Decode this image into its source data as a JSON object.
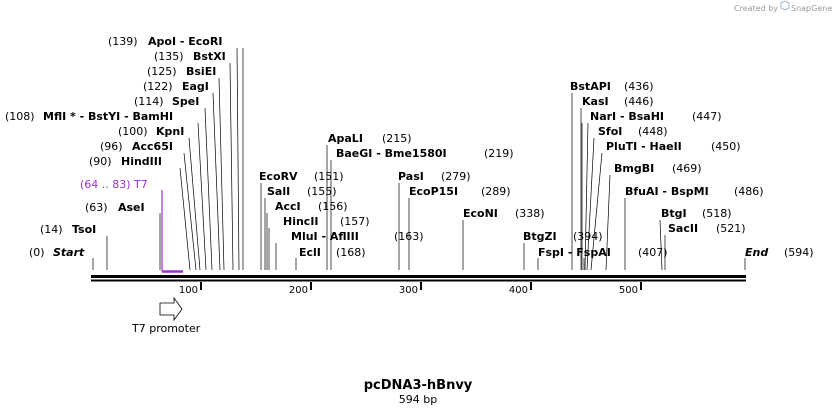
{
  "credit": "Created by",
  "brand": "SnapGene",
  "brand_icon": "snapgene-logo-icon",
  "title": "pcDNA3-hBnvy",
  "length_label": "594 bp",
  "ticks": [
    "100",
    "200",
    "300",
    "400",
    "500"
  ],
  "primer": {
    "label": "(64 .. 83)  T7",
    "color": "#9b30d0"
  },
  "feature": {
    "label": "T7 promoter"
  },
  "sites": [
    {
      "name": "Start",
      "pos": "(0)"
    },
    {
      "name": "TsoI",
      "pos": "(14)"
    },
    {
      "name": "AseI",
      "pos": "(63)"
    },
    {
      "name": "HindIII",
      "pos": "(90)"
    },
    {
      "name": "Acc65I",
      "pos": "(96)"
    },
    {
      "name": "KpnI",
      "pos": "(100)"
    },
    {
      "name": "MflI * - BstYI - BamHI",
      "pos": "(108)"
    },
    {
      "name": "SpeI",
      "pos": "(114)"
    },
    {
      "name": "EagI",
      "pos": "(122)"
    },
    {
      "name": "BsiEI",
      "pos": "(125)"
    },
    {
      "name": "BstXI",
      "pos": "(135)"
    },
    {
      "name": "ApoI - EcoRI",
      "pos": "(139)"
    },
    {
      "name": "EcoRV",
      "pos": "(151)"
    },
    {
      "name": "SalI",
      "pos": "(155)"
    },
    {
      "name": "AccI",
      "pos": "(156)"
    },
    {
      "name": "HincII",
      "pos": "(157)"
    },
    {
      "name": "MluI - AflIII",
      "pos": "(163)"
    },
    {
      "name": "EclI",
      "pos": "(168)"
    },
    {
      "name": "ApaLI",
      "pos": "(215)"
    },
    {
      "name": "BaeGI - Bme1580I",
      "pos": "(219)"
    },
    {
      "name": "PasI",
      "pos": "(279)"
    },
    {
      "name": "EcoP15I",
      "pos": "(289)"
    },
    {
      "name": "EcoNI",
      "pos": "(338)"
    },
    {
      "name": "BtgZI",
      "pos": "(394)"
    },
    {
      "name": "FspI - FspAI",
      "pos": "(407)"
    },
    {
      "name": "BstAPI",
      "pos": "(436)"
    },
    {
      "name": "KasI",
      "pos": "(446)"
    },
    {
      "name": "NarI - BsaHI",
      "pos": "(447)"
    },
    {
      "name": "SfoI",
      "pos": "(448)"
    },
    {
      "name": "PluTI - HaeII",
      "pos": "(450)"
    },
    {
      "name": "BmgBI",
      "pos": "(469)"
    },
    {
      "name": "BfuAI - BspMI",
      "pos": "(486)"
    },
    {
      "name": "BtgI",
      "pos": "(518)"
    },
    {
      "name": "SacII",
      "pos": "(521)"
    },
    {
      "name": "End",
      "pos": "(594)"
    }
  ]
}
